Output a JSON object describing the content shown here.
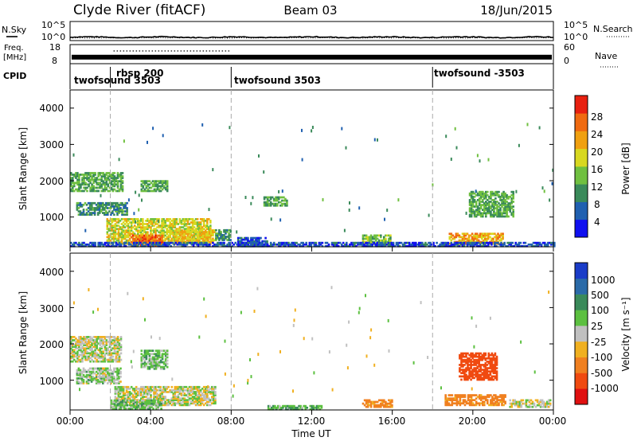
{
  "header": {
    "station": "Clyde River (fitACF)",
    "beam": "Beam 03",
    "date": "18/Jun/2015"
  },
  "noise_panel": {
    "left_label": "N.Sky",
    "left_ticks": [
      "10^5",
      "10^0"
    ],
    "right_label": "N.Search",
    "right_ticks": [
      "10^5",
      "10^0"
    ]
  },
  "freq_panel": {
    "left_label_1": "Freq.",
    "left_label_2": "[MHz]",
    "left_ticks": [
      "18",
      "8"
    ],
    "right_label": "Nave",
    "right_ticks": [
      "60",
      "0"
    ]
  },
  "cpid_panel": {
    "label": "CPID",
    "modes": [
      {
        "label": "twofsound 3503"
      },
      {
        "label": "rbsp 200"
      },
      {
        "label": "twofsound 3503"
      },
      {
        "label": "twofsound -3503"
      }
    ]
  },
  "power_panel": {
    "ylabel": "Slant Range [km]",
    "yticks": [
      "4000",
      "3000",
      "2000",
      "1000"
    ],
    "colorbar_label": "Power [dB]",
    "colorbar_ticks": [
      "28",
      "24",
      "20",
      "16",
      "12",
      "8",
      "4"
    ],
    "colorbar_colors": [
      "#1010f0",
      "#2060b0",
      "#3a8a5a",
      "#70c040",
      "#d8d820",
      "#f0a010",
      "#f06a10",
      "#e82010"
    ]
  },
  "velocity_panel": {
    "ylabel": "Slant Range [km]",
    "yticks": [
      "4000",
      "3000",
      "2000",
      "1000"
    ],
    "colorbar_label": "Velocity [m s⁻¹]",
    "colorbar_ticks": [
      "1000",
      "500",
      "100",
      "25",
      "-25",
      "-100",
      "-500",
      "-1000"
    ],
    "colorbar_colors": [
      "#1a3cc8",
      "#2a6aa8",
      "#3a8a5a",
      "#5cc040",
      "#c0c0c0",
      "#f0b020",
      "#f08020",
      "#f04a10",
      "#e01010"
    ]
  },
  "xaxis": {
    "ticks": [
      "00:00",
      "04:00",
      "08:00",
      "12:00",
      "16:00",
      "20:00",
      "00:00"
    ],
    "label": "Time UT"
  },
  "chart_data": {
    "type": "heatmap",
    "x_range_hours": [
      0,
      24
    ],
    "y_range_km": [
      180,
      4500
    ],
    "mode_changes_hours": [
      2.0,
      8.0,
      18.0
    ],
    "noise_level_log": 0.9,
    "frequency_mhz": 11.4,
    "power_patches": [
      {
        "t0": 0.0,
        "t1": 2.6,
        "r0": 1700,
        "r1": 2200,
        "v": 12
      },
      {
        "t0": 0.3,
        "t1": 2.8,
        "r0": 1050,
        "r1": 1400,
        "v": 10
      },
      {
        "t0": 1.8,
        "t1": 7.0,
        "r0": 250,
        "r1": 950,
        "v": 18
      },
      {
        "t0": 3.0,
        "t1": 4.6,
        "r0": 200,
        "r1": 500,
        "v": 26
      },
      {
        "t0": 5.2,
        "t1": 7.2,
        "r0": 300,
        "r1": 650,
        "v": 20
      },
      {
        "t0": 7.2,
        "t1": 8.0,
        "r0": 350,
        "r1": 650,
        "v": 10
      },
      {
        "t0": 3.5,
        "t1": 4.8,
        "r0": 1700,
        "r1": 2000,
        "v": 12
      },
      {
        "t0": 8.3,
        "t1": 9.8,
        "r0": 180,
        "r1": 420,
        "v": 6
      },
      {
        "t0": 9.6,
        "t1": 10.8,
        "r0": 1300,
        "r1": 1550,
        "v": 12
      },
      {
        "t0": 14.5,
        "t1": 15.9,
        "r0": 250,
        "r1": 500,
        "v": 14
      },
      {
        "t0": 18.8,
        "t1": 21.5,
        "r0": 250,
        "r1": 550,
        "v": 22
      },
      {
        "t0": 19.8,
        "t1": 22.0,
        "r0": 1000,
        "r1": 1700,
        "v": 12
      },
      {
        "t0": 0.0,
        "t1": 24.0,
        "r0": 180,
        "r1": 280,
        "v": 5
      }
    ],
    "velocity_patches": [
      {
        "t0": 0.0,
        "t1": 2.5,
        "r0": 1500,
        "r1": 2200,
        "v": 0
      },
      {
        "t0": 0.3,
        "t1": 2.5,
        "r0": 900,
        "r1": 1350,
        "v": 40
      },
      {
        "t0": 2.2,
        "t1": 7.2,
        "r0": 300,
        "r1": 800,
        "v": 0
      },
      {
        "t0": 2.0,
        "t1": 4.5,
        "r0": 200,
        "r1": 450,
        "v": 60
      },
      {
        "t0": 3.5,
        "t1": 4.8,
        "r0": 1300,
        "r1": 1800,
        "v": 60
      },
      {
        "t0": 9.8,
        "t1": 12.5,
        "r0": 180,
        "r1": 300,
        "v": 80
      },
      {
        "t0": 14.5,
        "t1": 16.0,
        "r0": 250,
        "r1": 450,
        "v": -150
      },
      {
        "t0": 19.3,
        "t1": 21.2,
        "r0": 1000,
        "r1": 1750,
        "v": -600
      },
      {
        "t0": 18.6,
        "t1": 21.6,
        "r0": 300,
        "r1": 600,
        "v": -150
      },
      {
        "t0": 21.8,
        "t1": 23.8,
        "r0": 250,
        "r1": 450,
        "v": 0
      }
    ]
  }
}
